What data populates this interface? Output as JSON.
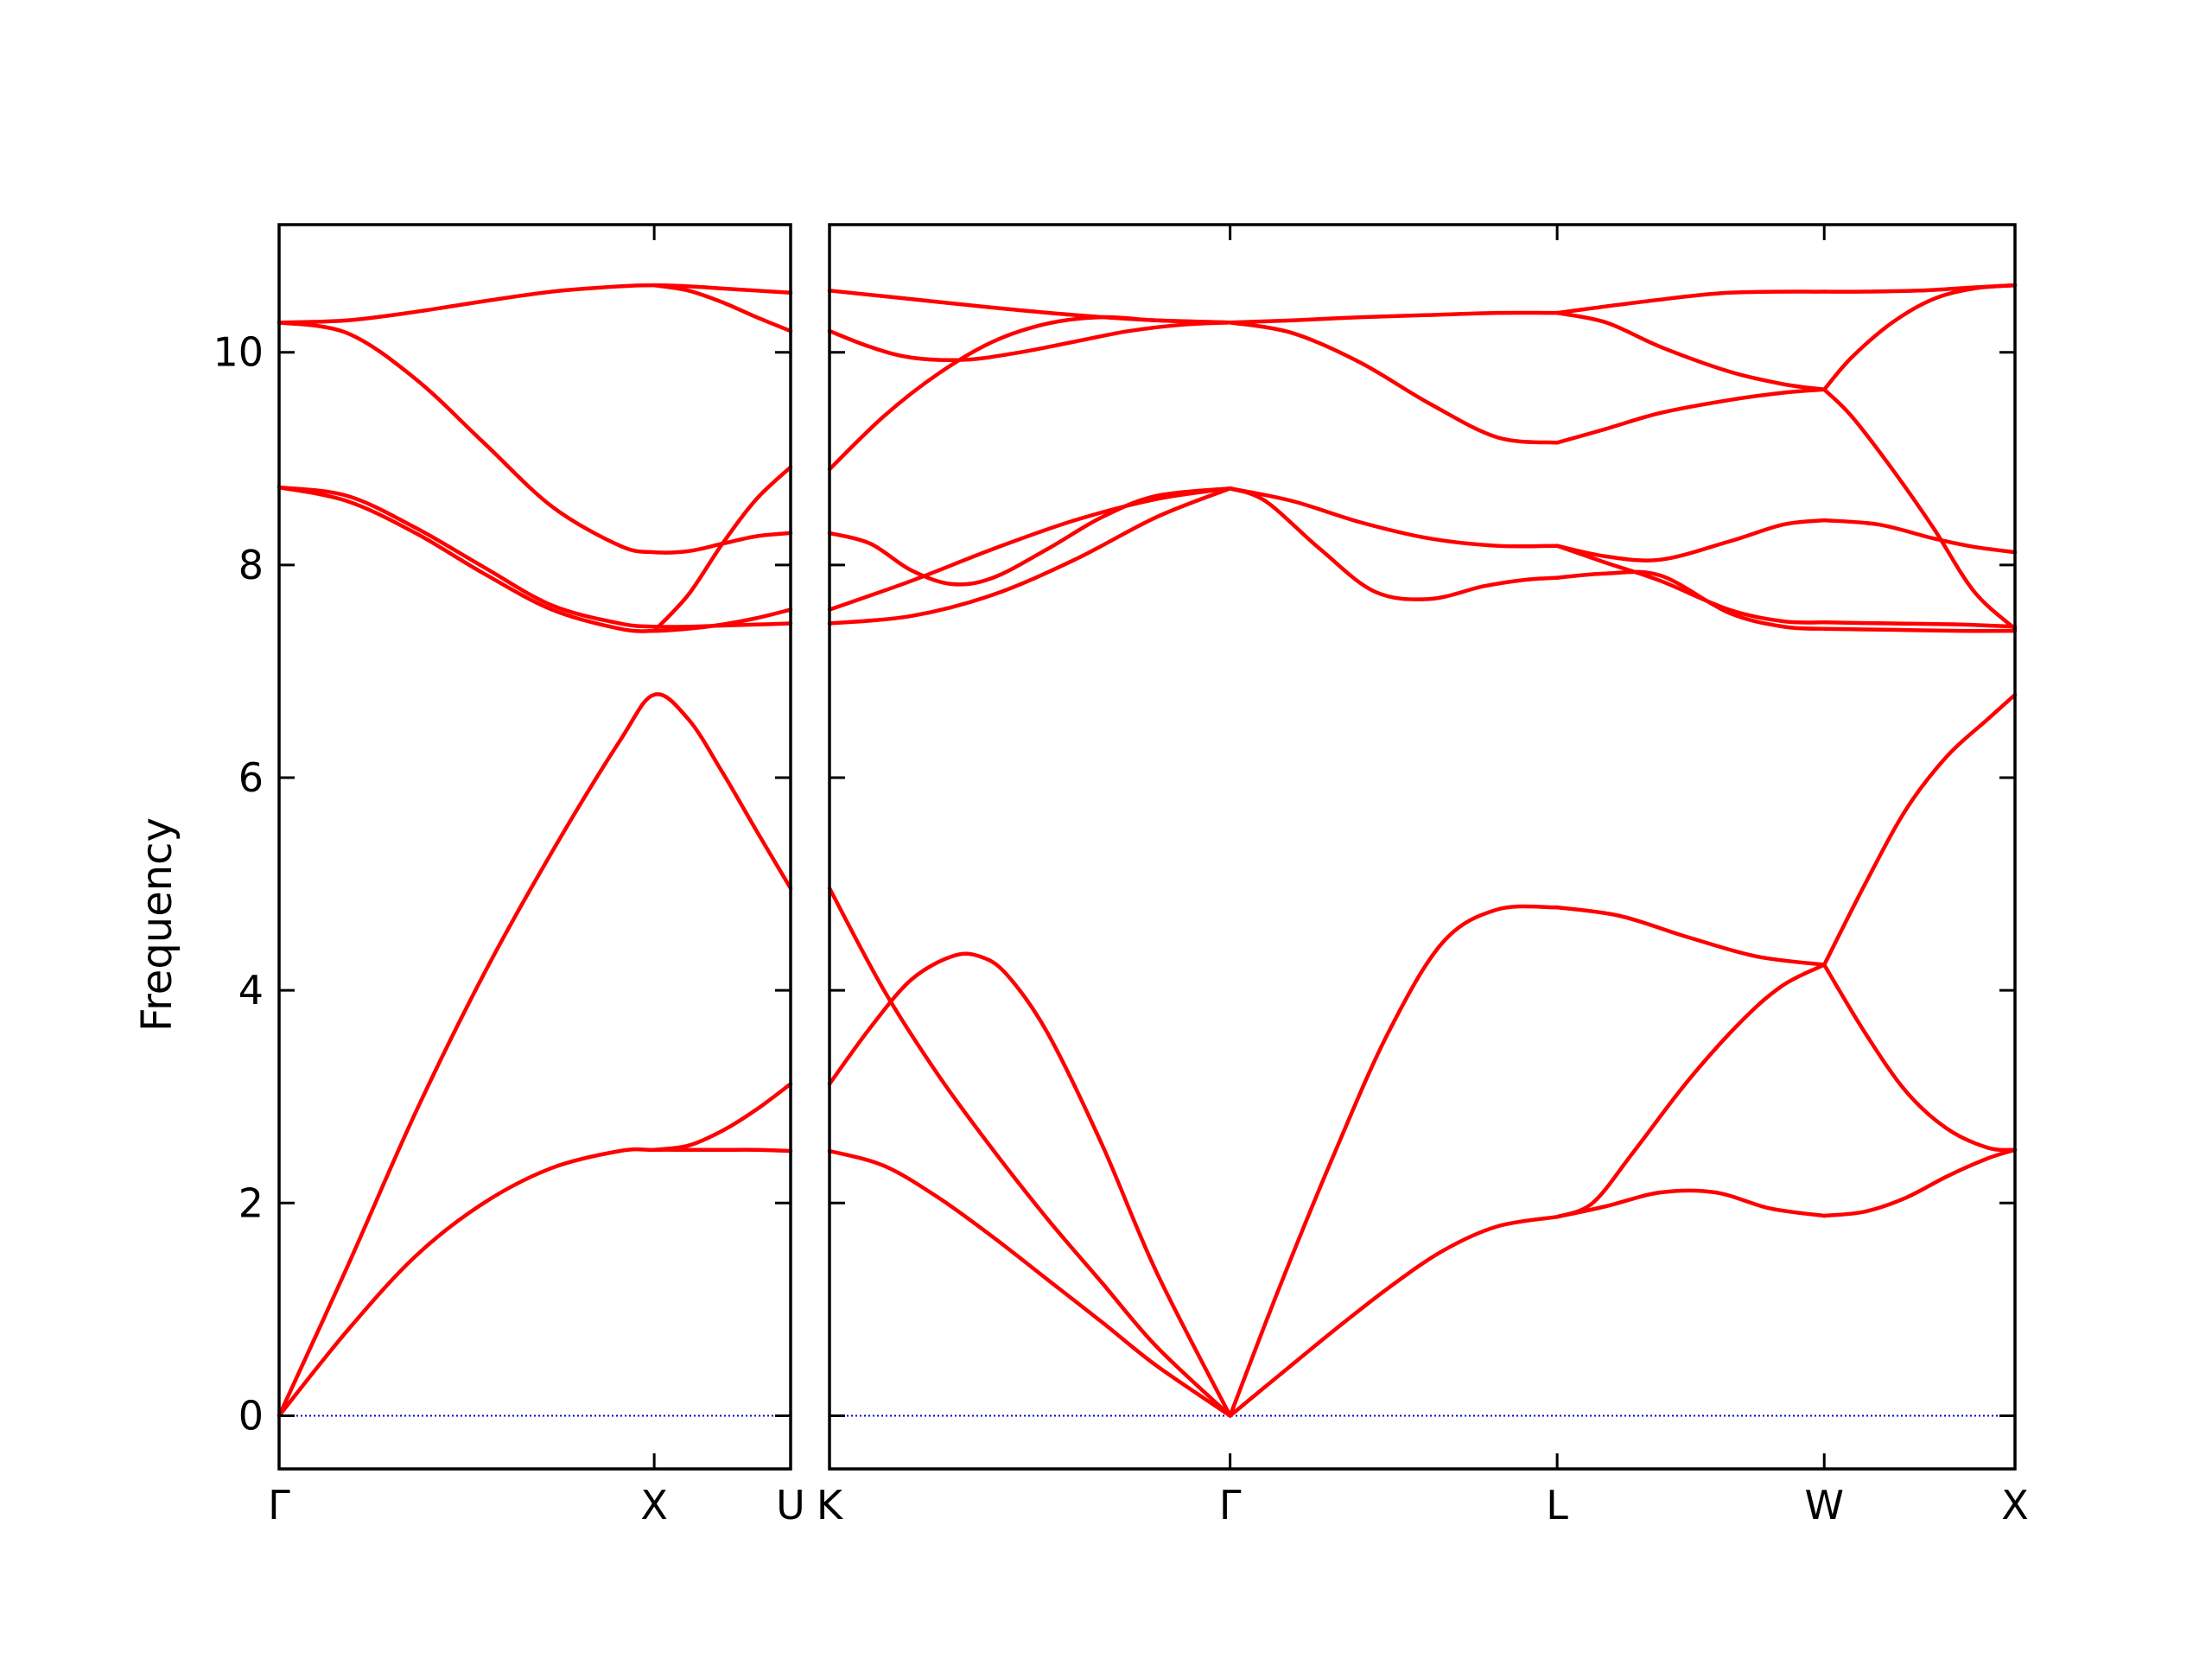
{
  "chart_data": {
    "type": "line",
    "title": "",
    "ylabel": "Frequency",
    "xlabel": "",
    "ylim": [
      -0.5,
      11.2
    ],
    "yticks": [
      {
        "value": 0,
        "label": "0"
      },
      {
        "value": 2,
        "label": "2"
      },
      {
        "value": 4,
        "label": "4"
      },
      {
        "value": 6,
        "label": "6"
      },
      {
        "value": 8,
        "label": "8"
      },
      {
        "value": 10,
        "label": "10"
      }
    ],
    "grid": false,
    "line_color": "#ff0000",
    "zero_line_color": "#0000cc",
    "panels": [
      {
        "xlim": [
          0,
          1.5
        ],
        "kpoints": [
          {
            "x": 0,
            "label": "Γ"
          },
          {
            "x": 1.1,
            "label": "X"
          },
          {
            "x": 1.5,
            "label": "U"
          }
        ],
        "branches": [
          {
            "x": [
              0,
              0.2,
              0.4,
              0.6,
              0.8,
              1.0,
              1.1,
              1.2,
              1.3,
              1.4,
              1.5
            ],
            "y": [
              10.28,
              10.3,
              10.38,
              10.48,
              10.57,
              10.62,
              10.63,
              10.62,
              10.6,
              10.58,
              10.56
            ]
          },
          {
            "x": [
              0,
              0.2,
              0.4,
              0.6,
              0.8,
              1.0,
              1.1,
              1.2,
              1.3,
              1.4,
              1.5
            ],
            "y": [
              10.28,
              10.18,
              9.75,
              9.15,
              8.55,
              8.18,
              8.12,
              8.13,
              8.2,
              8.27,
              8.3
            ]
          },
          {
            "x": [
              0,
              0.2,
              0.4,
              0.6,
              0.8,
              1.0,
              1.1,
              1.2,
              1.3,
              1.4,
              1.5
            ],
            "y": [
              8.73,
              8.65,
              8.35,
              7.98,
              7.62,
              7.45,
              7.42,
              7.42,
              7.43,
              7.44,
              7.45
            ]
          },
          {
            "x": [
              0,
              0.2,
              0.4,
              0.6,
              0.8,
              1.0,
              1.1,
              1.2,
              1.3,
              1.4,
              1.5
            ],
            "y": [
              8.73,
              8.6,
              8.3,
              7.92,
              7.58,
              7.4,
              7.38,
              7.4,
              7.44,
              7.5,
              7.58
            ]
          },
          {
            "x": [
              1.1,
              1.2,
              1.3,
              1.4,
              1.5
            ],
            "y": [
              10.63,
              10.58,
              10.47,
              10.33,
              10.2
            ]
          },
          {
            "x": [
              1.1,
              1.2,
              1.3,
              1.4,
              1.5
            ],
            "y": [
              7.38,
              7.72,
              8.2,
              8.62,
              8.92
            ]
          },
          {
            "x": [
              0,
              0.2,
              0.4,
              0.6,
              0.8,
              1.0,
              1.1,
              1.2,
              1.3,
              1.4,
              1.5
            ],
            "y": [
              0,
              1.4,
              2.85,
              4.15,
              5.3,
              6.35,
              6.78,
              6.55,
              6.05,
              5.5,
              4.96
            ]
          },
          {
            "x": [
              0,
              0.2,
              0.4,
              0.6,
              0.8,
              1.0,
              1.1,
              1.2,
              1.3,
              1.4,
              1.5
            ],
            "y": [
              0,
              0.8,
              1.5,
              2.0,
              2.33,
              2.49,
              2.5,
              2.5,
              2.5,
              2.5,
              2.49
            ]
          },
          {
            "x": [
              1.1,
              1.2,
              1.3,
              1.4,
              1.5
            ],
            "y": [
              2.5,
              2.54,
              2.68,
              2.88,
              3.12
            ]
          }
        ]
      },
      {
        "xlim": [
          0,
          4.35
        ],
        "kpoints": [
          {
            "x": 0,
            "label": "K"
          },
          {
            "x": 1.47,
            "label": "Γ"
          },
          {
            "x": 2.67,
            "label": "L"
          },
          {
            "x": 3.65,
            "label": "W"
          },
          {
            "x": 4.35,
            "label": "X"
          }
        ],
        "branches": [
          {
            "x": [
              0,
              0.3,
              0.6,
              0.9,
              1.2,
              1.47
            ],
            "y": [
              10.58,
              10.5,
              10.42,
              10.35,
              10.3,
              10.28
            ]
          },
          {
            "x": [
              0,
              0.15,
              0.3,
              0.5,
              0.7,
              0.9,
              1.1,
              1.3,
              1.47
            ],
            "y": [
              10.2,
              10.05,
              9.95,
              9.93,
              10.0,
              10.1,
              10.2,
              10.26,
              10.28
            ]
          },
          {
            "x": [
              0,
              0.2,
              0.4,
              0.6,
              0.8,
              1.0,
              1.2,
              1.47
            ],
            "y": [
              8.9,
              9.4,
              9.8,
              10.1,
              10.27,
              10.33,
              10.3,
              10.28
            ]
          },
          {
            "x": [
              0,
              0.3,
              0.6,
              0.9,
              1.2,
              1.47
            ],
            "y": [
              7.45,
              7.52,
              7.72,
              8.05,
              8.45,
              8.72
            ]
          },
          {
            "x": [
              0,
              0.3,
              0.6,
              0.9,
              1.2,
              1.47
            ],
            "y": [
              7.58,
              7.85,
              8.15,
              8.42,
              8.62,
              8.72
            ]
          },
          {
            "x": [
              0,
              0.15,
              0.3,
              0.45,
              0.6,
              0.8,
              1.0,
              1.2,
              1.47
            ],
            "y": [
              8.3,
              8.2,
              7.95,
              7.82,
              7.88,
              8.15,
              8.45,
              8.65,
              8.72
            ]
          },
          {
            "x": [
              1.47,
              1.7,
              1.95,
              2.2,
              2.45,
              2.67
            ],
            "y": [
              10.28,
              10.3,
              10.33,
              10.35,
              10.37,
              10.37
            ]
          },
          {
            "x": [
              1.47,
              1.7,
              1.95,
              2.2,
              2.45,
              2.67
            ],
            "y": [
              10.28,
              10.18,
              9.9,
              9.52,
              9.2,
              9.15
            ]
          },
          {
            "x": [
              1.47,
              1.7,
              1.95,
              2.2,
              2.45,
              2.67
            ],
            "y": [
              8.72,
              8.6,
              8.4,
              8.25,
              8.18,
              8.18
            ]
          },
          {
            "x": [
              1.47,
              1.6,
              1.8,
              2.0,
              2.2,
              2.4,
              2.55,
              2.67
            ],
            "y": [
              8.72,
              8.6,
              8.15,
              7.75,
              7.68,
              7.8,
              7.86,
              7.88
            ]
          },
          {
            "x": [
              2.67,
              3.0,
              3.3,
              3.65
            ],
            "y": [
              10.37,
              10.48,
              10.56,
              10.57
            ]
          },
          {
            "x": [
              2.67,
              2.85,
              3.05,
              3.3,
              3.5,
              3.65
            ],
            "y": [
              9.15,
              9.28,
              9.43,
              9.55,
              9.62,
              9.65
            ]
          },
          {
            "x": [
              2.67,
              2.85,
              3.05,
              3.3,
              3.5,
              3.65
            ],
            "y": [
              10.37,
              10.28,
              10.05,
              9.82,
              9.7,
              9.65
            ]
          },
          {
            "x": [
              2.67,
              2.85,
              3.05,
              3.3,
              3.5,
              3.65
            ],
            "y": [
              8.18,
              8.08,
              8.05,
              8.22,
              8.38,
              8.42
            ]
          },
          {
            "x": [
              2.67,
              2.85,
              3.05,
              3.3,
              3.5,
              3.65
            ],
            "y": [
              8.18,
              8.02,
              7.85,
              7.58,
              7.47,
              7.46
            ]
          },
          {
            "x": [
              2.67,
              2.85,
              3.05,
              3.3,
              3.5,
              3.65
            ],
            "y": [
              7.88,
              7.92,
              7.9,
              7.55,
              7.42,
              7.4
            ]
          },
          {
            "x": [
              3.65,
              3.8,
              4.0,
              4.2,
              4.35
            ],
            "y": [
              10.57,
              10.57,
              10.58,
              10.61,
              10.63
            ]
          },
          {
            "x": [
              3.65,
              3.75,
              3.9,
              4.05,
              4.2,
              4.35
            ],
            "y": [
              9.65,
              9.95,
              10.28,
              10.5,
              10.6,
              10.63
            ]
          },
          {
            "x": [
              3.65,
              3.75,
              3.9,
              4.05,
              4.2,
              4.35
            ],
            "y": [
              9.65,
              9.4,
              8.9,
              8.35,
              7.75,
              7.4
            ]
          },
          {
            "x": [
              3.65,
              3.85,
              4.05,
              4.2,
              4.35
            ],
            "y": [
              8.42,
              8.38,
              8.25,
              8.17,
              8.12
            ]
          },
          {
            "x": [
              3.65,
              3.9,
              4.15,
              4.35
            ],
            "y": [
              7.46,
              7.45,
              7.44,
              7.42
            ]
          },
          {
            "x": [
              3.65,
              3.9,
              4.15,
              4.35
            ],
            "y": [
              7.4,
              7.39,
              7.38,
              7.38
            ]
          },
          {
            "x": [
              0,
              0.2,
              0.4,
              0.6,
              0.8,
              1.0,
              1.2,
              1.47
            ],
            "y": [
              4.96,
              4.0,
              3.2,
              2.5,
              1.85,
              1.25,
              0.65,
              0
            ]
          },
          {
            "x": [
              0,
              0.15,
              0.3,
              0.45,
              0.55,
              0.65,
              0.8,
              1.0,
              1.2,
              1.47
            ],
            "y": [
              3.12,
              3.65,
              4.1,
              4.32,
              4.32,
              4.15,
              3.6,
              2.55,
              1.35,
              0
            ]
          },
          {
            "x": [
              0,
              0.2,
              0.4,
              0.6,
              0.8,
              1.0,
              1.2,
              1.47
            ],
            "y": [
              2.49,
              2.35,
              2.05,
              1.68,
              1.28,
              0.88,
              0.47,
              0
            ]
          },
          {
            "x": [
              1.47,
              1.65,
              1.85,
              2.05,
              2.25,
              2.45,
              2.67
            ],
            "y": [
              0,
              1.2,
              2.45,
              3.6,
              4.45,
              4.76,
              4.78
            ]
          },
          {
            "x": [
              1.47,
              1.65,
              1.85,
              2.05,
              2.25,
              2.45,
              2.67
            ],
            "y": [
              0,
              0.38,
              0.8,
              1.2,
              1.55,
              1.78,
              1.87
            ]
          },
          {
            "x": [
              2.67,
              2.9,
              3.15,
              3.4,
              3.65
            ],
            "y": [
              4.78,
              4.7,
              4.5,
              4.32,
              4.24
            ]
          },
          {
            "x": [
              2.67,
              2.8,
              2.95,
              3.15,
              3.35,
              3.5,
              3.65
            ],
            "y": [
              1.87,
              2.0,
              2.48,
              3.15,
              3.72,
              4.05,
              4.24
            ]
          },
          {
            "x": [
              2.67,
              2.85,
              3.05,
              3.25,
              3.45,
              3.65
            ],
            "y": [
              1.87,
              1.97,
              2.1,
              2.1,
              1.95,
              1.88
            ]
          },
          {
            "x": [
              3.65,
              3.8,
              3.95,
              4.1,
              4.25,
              4.35
            ],
            "y": [
              4.24,
              5.0,
              5.7,
              6.2,
              6.55,
              6.78
            ]
          },
          {
            "x": [
              3.65,
              3.8,
              3.95,
              4.1,
              4.25,
              4.35
            ],
            "y": [
              4.24,
              3.6,
              3.05,
              2.7,
              2.52,
              2.5
            ]
          },
          {
            "x": [
              3.65,
              3.8,
              3.95,
              4.1,
              4.25,
              4.35
            ],
            "y": [
              1.88,
              1.92,
              2.05,
              2.25,
              2.42,
              2.5
            ]
          }
        ]
      }
    ]
  }
}
